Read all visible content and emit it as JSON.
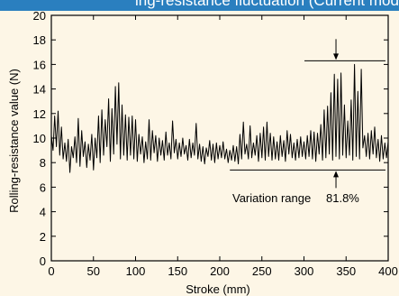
{
  "header": {
    "title_fragment": "ing-resistance fluctuation (Current model)"
  },
  "chart_data": {
    "type": "line",
    "title": "",
    "xlabel": "Stroke (mm)",
    "ylabel": "Rolling-resistance value (N)",
    "xlim": [
      0,
      400
    ],
    "ylim": [
      0,
      20
    ],
    "x_ticks": [
      0,
      50,
      100,
      150,
      200,
      250,
      300,
      350,
      400
    ],
    "y_ticks": [
      0,
      2,
      4,
      6,
      8,
      10,
      12,
      14,
      16,
      18,
      20
    ],
    "grid": false,
    "annotation": {
      "text": "Variation range",
      "value": "81.8%",
      "upper_level": 16.3,
      "lower_level": 7.4,
      "at_x": 338
    },
    "series": [
      {
        "values": [
          [
            0,
            10.2
          ],
          [
            2,
            9.0
          ],
          [
            4,
            11.8
          ],
          [
            6,
            9.3
          ],
          [
            8,
            12.2
          ],
          [
            10,
            8.6
          ],
          [
            12,
            10.9
          ],
          [
            14,
            8.3
          ],
          [
            16,
            9.6
          ],
          [
            18,
            8.1
          ],
          [
            20,
            9.9
          ],
          [
            22,
            7.2
          ],
          [
            24,
            9.3
          ],
          [
            26,
            8.4
          ],
          [
            28,
            10.1
          ],
          [
            30,
            8.0
          ],
          [
            32,
            11.6
          ],
          [
            34,
            7.7
          ],
          [
            36,
            10.6
          ],
          [
            38,
            8.5
          ],
          [
            40,
            9.7
          ],
          [
            42,
            7.6
          ],
          [
            44,
            9.5
          ],
          [
            46,
            8.2
          ],
          [
            48,
            10.3
          ],
          [
            50,
            7.4
          ],
          [
            52,
            10.0
          ],
          [
            54,
            8.4
          ],
          [
            56,
            11.8
          ],
          [
            58,
            8.0
          ],
          [
            60,
            12.3
          ],
          [
            62,
            8.6
          ],
          [
            64,
            11.5
          ],
          [
            66,
            9.3
          ],
          [
            68,
            13.2
          ],
          [
            70,
            8.1
          ],
          [
            72,
            12.4
          ],
          [
            74,
            8.7
          ],
          [
            76,
            14.2
          ],
          [
            78,
            9.5
          ],
          [
            80,
            14.5
          ],
          [
            82,
            8.3
          ],
          [
            84,
            12.7
          ],
          [
            86,
            8.6
          ],
          [
            88,
            11.9
          ],
          [
            90,
            8.2
          ],
          [
            92,
            11.7
          ],
          [
            94,
            8.6
          ],
          [
            96,
            11.8
          ],
          [
            98,
            8.3
          ],
          [
            100,
            11.5
          ],
          [
            102,
            8.1
          ],
          [
            104,
            10.3
          ],
          [
            106,
            8.7
          ],
          [
            108,
            10.1
          ],
          [
            110,
            8.0
          ],
          [
            112,
            9.7
          ],
          [
            114,
            8.3
          ],
          [
            116,
            11.5
          ],
          [
            118,
            8.2
          ],
          [
            120,
            10.6
          ],
          [
            122,
            8.8
          ],
          [
            124,
            10.2
          ],
          [
            126,
            8.1
          ],
          [
            128,
            10.0
          ],
          [
            130,
            8.6
          ],
          [
            132,
            9.8
          ],
          [
            134,
            8.2
          ],
          [
            136,
            10.5
          ],
          [
            138,
            8.6
          ],
          [
            140,
            9.6
          ],
          [
            142,
            8.3
          ],
          [
            144,
            11.4
          ],
          [
            146,
            8.8
          ],
          [
            148,
            9.9
          ],
          [
            150,
            8.3
          ],
          [
            152,
            9.6
          ],
          [
            154,
            8.5
          ],
          [
            156,
            10.0
          ],
          [
            158,
            8.7
          ],
          [
            160,
            9.4
          ],
          [
            162,
            8.2
          ],
          [
            164,
            9.9
          ],
          [
            166,
            8.4
          ],
          [
            168,
            9.6
          ],
          [
            170,
            8.6
          ],
          [
            172,
            11.2
          ],
          [
            174,
            8.3
          ],
          [
            176,
            9.5
          ],
          [
            178,
            8.1
          ],
          [
            180,
            9.3
          ],
          [
            182,
            7.9
          ],
          [
            184,
            9.2
          ],
          [
            186,
            8.5
          ],
          [
            188,
            9.8
          ],
          [
            190,
            8.2
          ],
          [
            192,
            9.5
          ],
          [
            194,
            8.0
          ],
          [
            196,
            9.6
          ],
          [
            198,
            8.3
          ],
          [
            200,
            9.4
          ],
          [
            202,
            8.4
          ],
          [
            204,
            9.7
          ],
          [
            206,
            8.3
          ],
          [
            208,
            9.1
          ],
          [
            210,
            8.0
          ],
          [
            212,
            9.0
          ],
          [
            214,
            8.2
          ],
          [
            216,
            9.4
          ],
          [
            218,
            8.1
          ],
          [
            220,
            9.3
          ],
          [
            222,
            7.9
          ],
          [
            224,
            10.3
          ],
          [
            226,
            8.3
          ],
          [
            228,
            11.3
          ],
          [
            230,
            8.7
          ],
          [
            232,
            9.5
          ],
          [
            234,
            8.3
          ],
          [
            236,
            11.0
          ],
          [
            238,
            8.4
          ],
          [
            240,
            9.6
          ],
          [
            242,
            8.6
          ],
          [
            244,
            10.2
          ],
          [
            246,
            8.1
          ],
          [
            248,
            10.4
          ],
          [
            250,
            8.4
          ],
          [
            252,
            10.9
          ],
          [
            254,
            8.2
          ],
          [
            256,
            11.3
          ],
          [
            258,
            8.5
          ],
          [
            260,
            10.4
          ],
          [
            262,
            8.2
          ],
          [
            264,
            10.1
          ],
          [
            266,
            8.3
          ],
          [
            268,
            9.7
          ],
          [
            270,
            8.2
          ],
          [
            272,
            10.2
          ],
          [
            274,
            8.5
          ],
          [
            276,
            9.8
          ],
          [
            278,
            8.1
          ],
          [
            280,
            10.6
          ],
          [
            282,
            8.7
          ],
          [
            284,
            10.3
          ],
          [
            286,
            8.4
          ],
          [
            288,
            9.6
          ],
          [
            290,
            8.2
          ],
          [
            292,
            9.9
          ],
          [
            294,
            8.4
          ],
          [
            296,
            10.1
          ],
          [
            298,
            8.5
          ],
          [
            300,
            9.7
          ],
          [
            302,
            8.3
          ],
          [
            304,
            10.2
          ],
          [
            306,
            8.5
          ],
          [
            308,
            10.6
          ],
          [
            310,
            8.3
          ],
          [
            312,
            10.5
          ],
          [
            314,
            8.1
          ],
          [
            316,
            10.4
          ],
          [
            318,
            8.7
          ],
          [
            320,
            11.1
          ],
          [
            322,
            8.2
          ],
          [
            324,
            12.3
          ],
          [
            326,
            8.4
          ],
          [
            328,
            12.6
          ],
          [
            330,
            8.7
          ],
          [
            332,
            13.7
          ],
          [
            334,
            8.2
          ],
          [
            336,
            15.2
          ],
          [
            338,
            8.5
          ],
          [
            340,
            14.8
          ],
          [
            342,
            8.3
          ],
          [
            344,
            15.3
          ],
          [
            346,
            8.6
          ],
          [
            348,
            12.7
          ],
          [
            350,
            8.4
          ],
          [
            352,
            11.4
          ],
          [
            354,
            8.6
          ],
          [
            356,
            13.1
          ],
          [
            358,
            8.2
          ],
          [
            360,
            16.0
          ],
          [
            362,
            8.5
          ],
          [
            364,
            13.8
          ],
          [
            366,
            8.3
          ],
          [
            368,
            15.6
          ],
          [
            370,
            9.2
          ],
          [
            372,
            10.2
          ],
          [
            374,
            8.5
          ],
          [
            376,
            10.4
          ],
          [
            378,
            8.3
          ],
          [
            380,
            10.6
          ],
          [
            382,
            8.7
          ],
          [
            384,
            10.9
          ],
          [
            386,
            8.4
          ],
          [
            388,
            9.9
          ],
          [
            390,
            8.1
          ],
          [
            392,
            10.2
          ],
          [
            394,
            8.3
          ],
          [
            396,
            9.6
          ],
          [
            398,
            8.4
          ],
          [
            400,
            9.7
          ]
        ]
      }
    ]
  }
}
